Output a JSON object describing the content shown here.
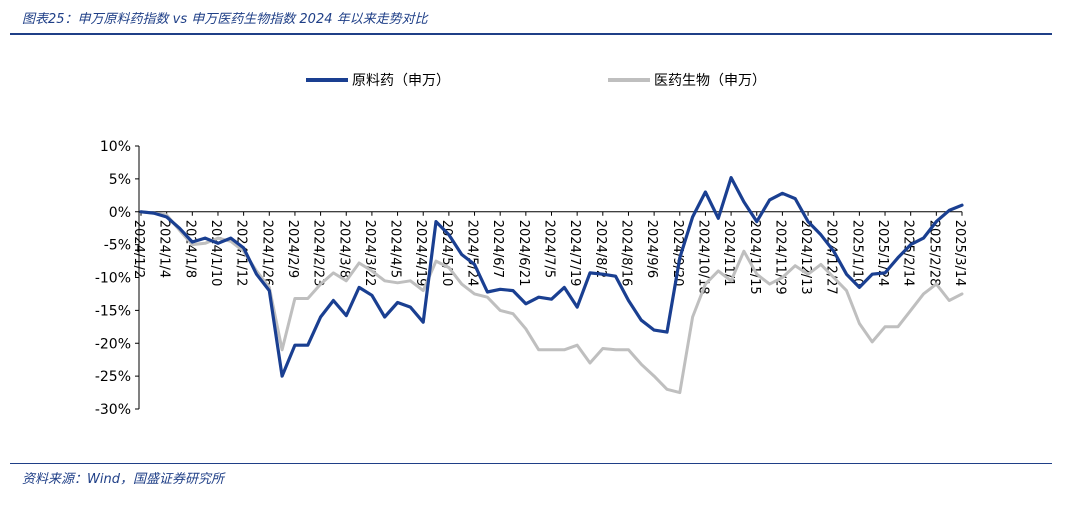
{
  "header": {
    "title": "图表25：申万原料药指数 vs 申万医药生物指数 2024 年以来走势对比"
  },
  "footer": {
    "source": "资料来源：Wind，国盛证券研究所"
  },
  "colors": {
    "series1": "#1a3f91",
    "series2": "#bfbfbf",
    "accent": "#1f3f87"
  },
  "chart_data": {
    "type": "line",
    "title": "",
    "xlabel": "",
    "ylabel": "",
    "ylim": [
      -30,
      10
    ],
    "y_ticks": [
      10,
      5,
      0,
      -5,
      -10,
      -15,
      -20,
      -25,
      -30
    ],
    "y_tick_labels": [
      "10%",
      "5%",
      "0%",
      "-5%",
      "-10%",
      "-15%",
      "-20%",
      "-25%",
      "-30%"
    ],
    "x_tick_labels": [
      "2024/1/2",
      "2024/1/4",
      "2024/1/8",
      "2024/1/10",
      "2024/1/12",
      "2024/1/26",
      "2024/2/9",
      "2024/2/23",
      "2024/3/8",
      "2024/3/22",
      "2024/4/5",
      "2024/4/19",
      "2024/5/10",
      "2024/5/24",
      "2024/6/7",
      "2024/6/21",
      "2024/7/5",
      "2024/7/19",
      "2024/8/2",
      "2024/8/16",
      "2024/9/6",
      "2024/9/20",
      "2024/10/18",
      "2024/11/1",
      "2024/11/15",
      "2024/11/29",
      "2024/12/13",
      "2024/12/27",
      "2025/1/10",
      "2025/1/24",
      "2025/2/14",
      "2025/2/28",
      "2025/3/14"
    ],
    "legend_position": "top",
    "grid": false,
    "series": [
      {
        "name": "原料药（申万）",
        "color": "#1a3f91",
        "values": [
          0,
          -0.2,
          -0.8,
          -2.5,
          -4.6,
          -4.0,
          -4.8,
          -4.0,
          -5.5,
          -9.5,
          -12.0,
          -25.0,
          -20.3,
          -20.3,
          -16.0,
          -13.5,
          -15.8,
          -11.5,
          -12.7,
          -16.0,
          -13.8,
          -14.5,
          -16.8,
          -1.5,
          -3.5,
          -6.5,
          -8.0,
          -12.2,
          -11.8,
          -12.0,
          -14.0,
          -13.0,
          -13.3,
          -11.5,
          -14.5,
          -9.3,
          -9.5,
          -9.8,
          -13.5,
          -16.5,
          -18.0,
          -18.3,
          -7.0,
          -0.8,
          3.0,
          -1.0,
          5.2,
          1.5,
          -1.5,
          1.8,
          2.8,
          2.0,
          -1.5,
          -3.5,
          -6.0,
          -9.5,
          -11.5,
          -9.5,
          -9.3,
          -7.0,
          -5.0,
          -4.0,
          -1.5,
          0.2,
          1.0
        ]
      },
      {
        "name": "医药生物（申万）",
        "color": "#bfbfbf",
        "values": [
          0,
          -0.2,
          -0.5,
          -2.8,
          -5.0,
          -4.8,
          -4.0,
          -4.5,
          -6.0,
          -9.0,
          -11.5,
          -21.0,
          -13.2,
          -13.2,
          -11.0,
          -9.3,
          -10.5,
          -7.8,
          -9.0,
          -10.5,
          -10.8,
          -10.5,
          -12.0,
          -7.5,
          -8.5,
          -11.0,
          -12.5,
          -13.0,
          -15.0,
          -15.5,
          -17.8,
          -21.0,
          -21.0,
          -21.0,
          -20.3,
          -23.0,
          -20.8,
          -21.0,
          -21.0,
          -23.2,
          -25.0,
          -27.0,
          -27.5,
          -16.0,
          -11.0,
          -9.0,
          -10.5,
          -6.0,
          -9.5,
          -11.0,
          -10.0,
          -8.2,
          -9.5,
          -8.0,
          -10.0,
          -12.0,
          -17.0,
          -19.8,
          -17.5,
          -17.5,
          -15.0,
          -12.5,
          -11.0,
          -13.5,
          -12.5
        ]
      }
    ]
  }
}
